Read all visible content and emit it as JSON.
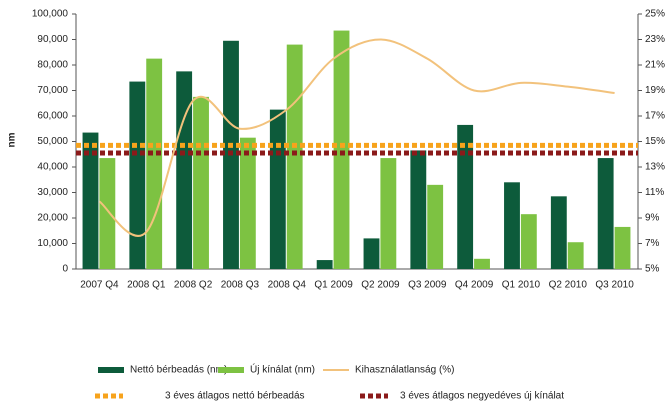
{
  "chart_data": {
    "type": "bar",
    "y_label": "nm",
    "categories": [
      "2007 Q4",
      "2008 Q1",
      "2008 Q2",
      "2008 Q3",
      "2008 Q4",
      "Q1 2009",
      "Q2 2009",
      "Q3 2009",
      "Q4 2009",
      "Q1 2010",
      "Q2 2010",
      "Q3 2010"
    ],
    "series": [
      {
        "name": "Nettó bérbeadás (nm)",
        "color": "#0d5b3b",
        "values": [
          53500,
          73500,
          77500,
          89500,
          62500,
          3500,
          12000,
          46500,
          56500,
          34000,
          28500,
          43500
        ]
      },
      {
        "name": "Új kínálat (nm)",
        "color": "#7dc242",
        "values": [
          43500,
          82500,
          67500,
          51500,
          88000,
          93500,
          43500,
          33000,
          4000,
          21500,
          10500,
          16500
        ]
      },
      {
        "name": "Kihasználatlanság (%)",
        "color": "#f2c27c",
        "axis": "y2",
        "values": [
          10.3,
          7.9,
          18.2,
          16.0,
          17.5,
          21.5,
          23.0,
          21.5,
          19.0,
          19.6,
          19.3,
          18.8
        ]
      }
    ],
    "reference_lines": [
      {
        "name": "3 éves átlagos nettó bérbeadás",
        "color": "#f7a31c",
        "value": 48500
      },
      {
        "name": "3 éves átlagos negyedéves új kínálat",
        "color": "#8b1a1a",
        "value": 45500
      }
    ],
    "ylim": [
      0,
      100000
    ],
    "yticks": [
      0,
      {
        "value": 10000,
        "label": "10,000"
      },
      {
        "value": 20000,
        "label": "20,000"
      },
      {
        "value": 30000,
        "label": "30,000"
      },
      {
        "value": 40000,
        "label": "40,000"
      },
      {
        "value": 50000,
        "label": "50,000"
      },
      {
        "value": 60000,
        "label": "60,000"
      },
      {
        "value": 70000,
        "label": "70,000"
      },
      {
        "value": 80000,
        "label": "80,000"
      },
      {
        "value": 90000,
        "label": "90,000"
      },
      {
        "value": 100000,
        "label": "100,000"
      }
    ],
    "y2lim": [
      5,
      25
    ],
    "y2ticks": [
      {
        "value": 5,
        "label": "5%"
      },
      {
        "value": 7,
        "label": "7%"
      },
      {
        "value": 9,
        "label": "9%"
      },
      {
        "value": 11,
        "label": "11%"
      },
      {
        "value": 13,
        "label": "13%"
      },
      {
        "value": 15,
        "label": "15%"
      },
      {
        "value": 17,
        "label": "17%"
      },
      {
        "value": 19,
        "label": "19%"
      },
      {
        "value": 21,
        "label": "21%"
      },
      {
        "value": 23,
        "label": "23%"
      },
      {
        "value": 25,
        "label": "25%"
      }
    ]
  }
}
